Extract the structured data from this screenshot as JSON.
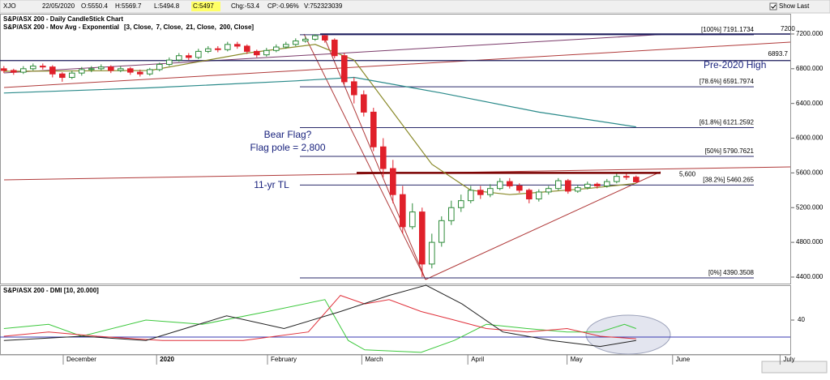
{
  "header": {
    "symbol": "XJO",
    "date": "22/05/2020",
    "open": "O:5550.4",
    "high": "H:5569.7",
    "low": "L:5494.8",
    "close": "C:5497",
    "change": "Chg:-53.4",
    "change_pct": "CP:-0.96%",
    "volume": "V:752323039",
    "show_last": "Show Last"
  },
  "chart_data": [
    {
      "type": "candlestick",
      "title": "S&P/ASX 200 - Daily CandleStick Chart",
      "subtitle": "S&P/ASX 200 - Mov Avg - Exponential",
      "ma_legend": [
        {
          "label": "[3, Close,",
          "color": "#1f3fbf"
        },
        {
          "label": "7, Close,",
          "color": "#d0202a"
        },
        {
          "label": "21, Close,",
          "color": "#8a8a2a"
        },
        {
          "label": "200, Close]",
          "color": "#2a8a8a"
        }
      ],
      "open": [
        6800,
        6780,
        6760,
        6800,
        6830,
        6820,
        6740,
        6700,
        6750,
        6790,
        6800,
        6820,
        6780,
        6800,
        6760,
        6740,
        6790,
        6850,
        6900,
        6950,
        6930,
        7000,
        7030,
        7020,
        7080,
        7060,
        7000,
        6960,
        7010,
        7050,
        7080,
        7120,
        7140,
        7180,
        7130,
        6950,
        6650,
        6500,
        6300,
        5900,
        5650,
        5350,
        4980,
        5150,
        4550,
        4800,
        5050,
        5200,
        5280,
        5400,
        5350,
        5420,
        5500,
        5450,
        5400,
        5300,
        5380,
        5420,
        5510,
        5390,
        5430,
        5470,
        5450,
        5500,
        5560,
        5550.4
      ],
      "high": [
        6830,
        6800,
        6830,
        6860,
        6860,
        6840,
        6760,
        6780,
        6820,
        6830,
        6850,
        6840,
        6830,
        6820,
        6790,
        6810,
        6870,
        6930,
        6980,
        6980,
        7030,
        7060,
        7060,
        7110,
        7110,
        7080,
        7020,
        7040,
        7080,
        7110,
        7150,
        7170,
        7197,
        7190,
        7150,
        6980,
        6700,
        6550,
        6350,
        6000,
        5750,
        5450,
        5250,
        5200,
        4900,
        5100,
        5280,
        5350,
        5450,
        5450,
        5470,
        5540,
        5540,
        5480,
        5420,
        5410,
        5450,
        5540,
        5530,
        5460,
        5500,
        5490,
        5530,
        5590,
        5590,
        5569.7
      ],
      "low": [
        6750,
        6730,
        6740,
        6780,
        6790,
        6700,
        6650,
        6680,
        6720,
        6760,
        6780,
        6750,
        6760,
        6730,
        6710,
        6720,
        6770,
        6830,
        6880,
        6900,
        6910,
        6980,
        6990,
        7000,
        7030,
        6970,
        6930,
        6940,
        6990,
        7030,
        7060,
        7100,
        7120,
        7100,
        6920,
        6620,
        6400,
        6250,
        5850,
        5550,
        5250,
        4900,
        4950,
        4400,
        4500,
        4750,
        5000,
        5150,
        5250,
        5300,
        5320,
        5400,
        5420,
        5370,
        5250,
        5270,
        5350,
        5400,
        5360,
        5370,
        5410,
        5420,
        5430,
        5480,
        5520,
        5494.8
      ],
      "close": [
        6780,
        6760,
        6800,
        6830,
        6820,
        6740,
        6700,
        6750,
        6790,
        6800,
        6820,
        6780,
        6800,
        6760,
        6740,
        6790,
        6850,
        6900,
        6950,
        6930,
        7000,
        7030,
        7020,
        7080,
        7060,
        7000,
        6960,
        7010,
        7050,
        7080,
        7120,
        7140,
        7180,
        7130,
        6950,
        6650,
        6500,
        6300,
        5900,
        5650,
        5350,
        4980,
        5150,
        4550,
        4800,
        5050,
        5200,
        5280,
        5400,
        5350,
        5420,
        5500,
        5450,
        5400,
        5300,
        5380,
        5420,
        5510,
        5390,
        5430,
        5470,
        5450,
        5500,
        5560,
        5550,
        5497
      ],
      "up_color": "#2e8b3a",
      "down_color": "#e0202a",
      "xlim": [
        -0.4,
        80.85
      ],
      "ylim": [
        4325,
        7433
      ],
      "yticks": [
        {
          "value": 4400,
          "label": "4400.000"
        },
        {
          "value": 4800,
          "label": "4800.000"
        },
        {
          "value": 5200,
          "label": "5200.000"
        },
        {
          "value": 5600,
          "label": "5600.000"
        },
        {
          "value": 6000,
          "label": "6000.000"
        },
        {
          "value": 6400,
          "label": "6400.000"
        },
        {
          "value": 6800,
          "label": "6800.000"
        },
        {
          "value": 7200,
          "label": "7200.000"
        }
      ],
      "xticks": [
        {
          "value": 6.1,
          "label": "December"
        },
        {
          "value": 15.7,
          "label": "2020"
        },
        {
          "value": 27.1,
          "label": "February"
        },
        {
          "value": 36.8,
          "label": "March"
        },
        {
          "value": 47.7,
          "label": "April"
        },
        {
          "value": 57.9,
          "label": "May"
        },
        {
          "value": 68.75,
          "label": "June"
        },
        {
          "value": 79.8,
          "label": "July"
        }
      ],
      "overlays": [
        {
          "color": "#8a8a2a",
          "x": [
            0,
            15,
            25,
            32,
            36,
            40,
            44,
            48,
            52,
            60,
            65
          ],
          "values": [
            6770,
            6780,
            6980,
            7080,
            6900,
            6300,
            5700,
            5400,
            5350,
            5420,
            5480
          ]
        },
        {
          "color": "#2a8a8a",
          "x": [
            0,
            15,
            30,
            36,
            45,
            55,
            65
          ],
          "values": [
            6520,
            6580,
            6660,
            6700,
            6520,
            6300,
            6130
          ]
        }
      ],
      "fib_levels": [
        {
          "value": 7191.1734,
          "label": "[100%] 7191.1734"
        },
        {
          "value": 6591.7974,
          "label": "[78.6%] 6591.7974"
        },
        {
          "value": 6121.2592,
          "label": "[61.8%] 6121.2592"
        },
        {
          "value": 5790.7621,
          "label": "[50%] 5790.7621"
        },
        {
          "value": 5460.265,
          "label": "[38.2%] 5460.265"
        },
        {
          "value": 4390.3508,
          "label": "[0%] 4390.3508"
        }
      ],
      "levels": [
        {
          "value": 7200,
          "label": "7200"
        },
        {
          "value": 6893.7,
          "label": "6893.7"
        },
        {
          "value": 5600,
          "label": "5,600"
        }
      ],
      "annotations": [
        "Pre-2020 High",
        "Bear Flag?",
        "Flag pole = 2,800",
        "11-yr TL"
      ]
    },
    {
      "type": "line",
      "title": "S&P/ASX 200 - DMI [10, 20.000]",
      "xlim": [
        -0.4,
        80.85
      ],
      "ylim": [
        0,
        81
      ],
      "yticks": [
        40
      ],
      "threshold": 20,
      "series": [
        {
          "color": "#3cc83c",
          "x": [
            0,
            4.6,
            8,
            14.6,
            20.4,
            27.1,
            33,
            35.4,
            37.1,
            42.9,
            46.3,
            49.6,
            53.8,
            57.9,
            61.3,
            63.8,
            65
          ],
          "values": [
            30,
            35,
            21,
            40,
            35,
            50,
            64,
            16,
            5,
            2,
            16,
            35,
            30,
            26,
            26,
            35,
            30
          ]
        },
        {
          "color": "#e0303a",
          "x": [
            0,
            4.6,
            9.6,
            16.3,
            24.6,
            31.3,
            34.6,
            37.1,
            39.6,
            42.9,
            46.3,
            49.6,
            53.8,
            57.9,
            61.3,
            65
          ],
          "values": [
            21,
            26,
            21,
            16,
            16,
            26,
            69,
            59,
            64,
            50,
            40,
            30,
            26,
            30,
            21,
            18
          ]
        },
        {
          "color": "#222222",
          "x": [
            0,
            8,
            14.6,
            22.9,
            28.8,
            34.6,
            39.6,
            43.4,
            47.1,
            51.3,
            56.3,
            61.3,
            65
          ],
          "values": [
            16,
            21,
            16,
            45,
            30,
            50,
            69,
            81,
            59,
            26,
            16,
            9,
            16
          ]
        }
      ]
    }
  ]
}
